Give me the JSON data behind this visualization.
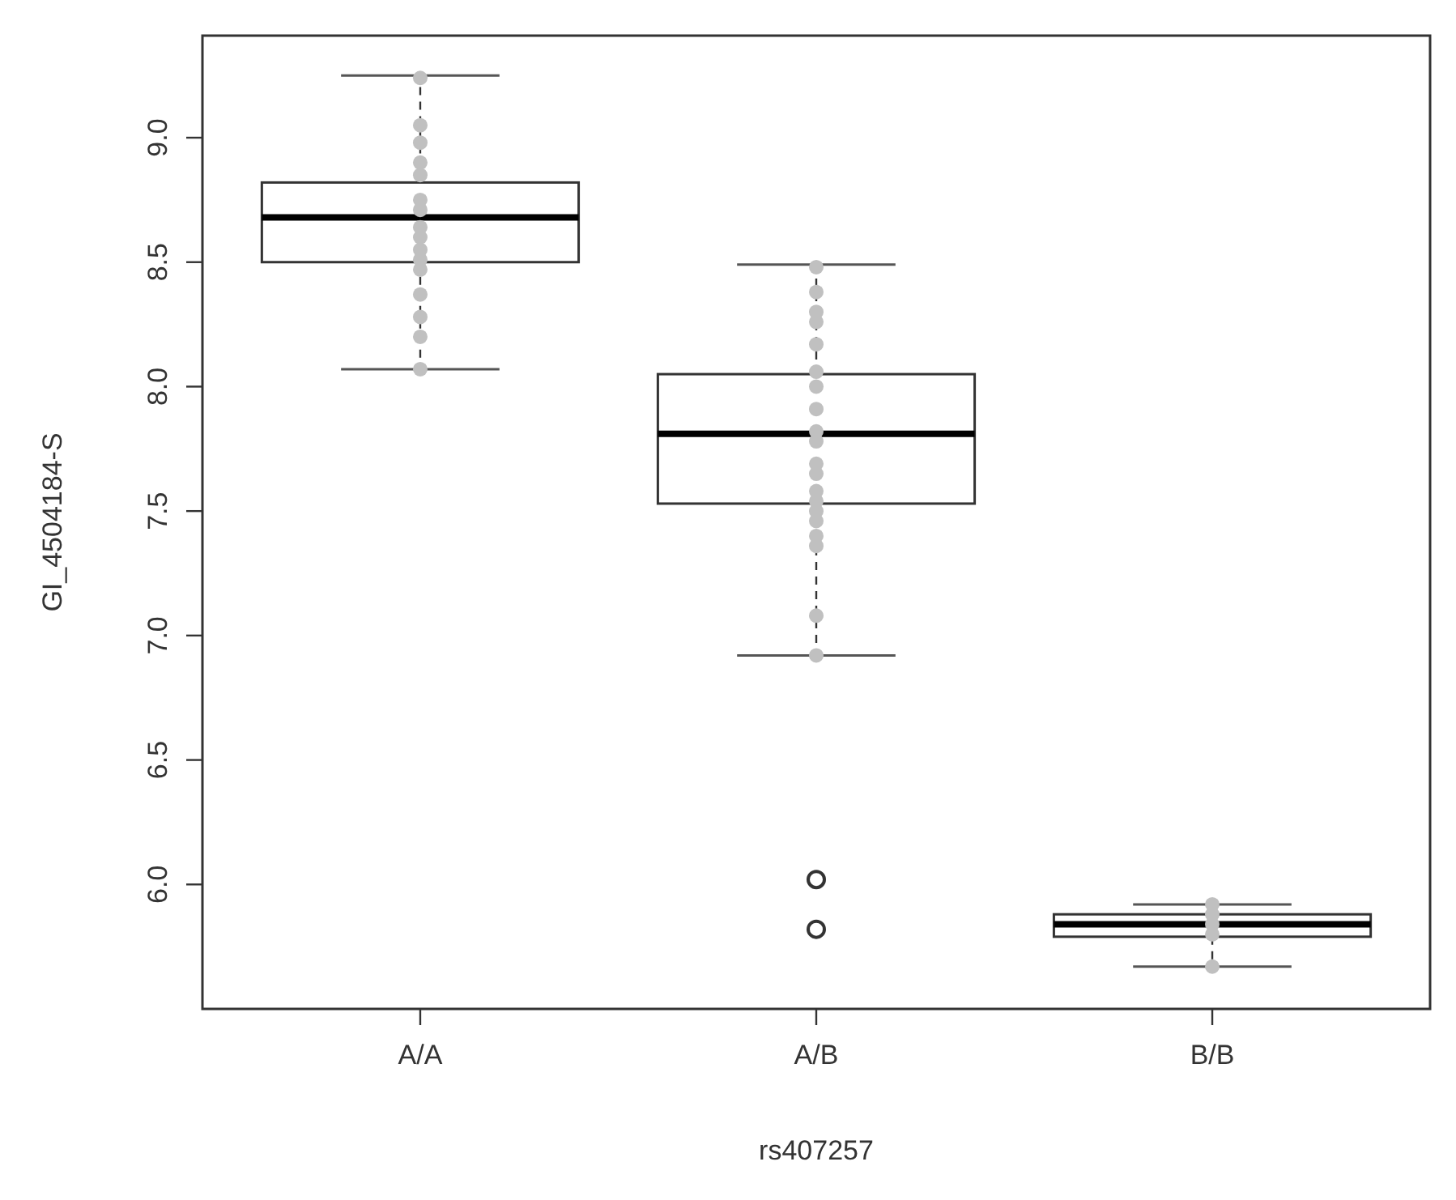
{
  "chart_data": {
    "type": "box",
    "xlabel": "rs407257",
    "ylabel": "GI_4504184-S",
    "categories": [
      "A/A",
      "A/B",
      "B/B"
    ],
    "ylim": [
      5.5,
      9.41
    ],
    "yticks": [
      {
        "value": 6,
        "label": "6.0"
      },
      {
        "value": 6.5,
        "label": "6.5"
      },
      {
        "value": 7,
        "label": "7.0"
      },
      {
        "value": 7.5,
        "label": "7.5"
      },
      {
        "value": 8,
        "label": "8.0"
      },
      {
        "value": 8.5,
        "label": "8.5"
      },
      {
        "value": 9,
        "label": "9.0"
      }
    ],
    "boxes": [
      {
        "low": 8.07,
        "q1": 8.5,
        "median": 8.68,
        "q3": 8.82,
        "high": 9.25
      },
      {
        "low": 6.92,
        "q1": 7.53,
        "median": 7.81,
        "q3": 8.05,
        "high": 8.49,
        "outliers": [
          6.02,
          5.82
        ]
      },
      {
        "low": 5.67,
        "q1": 5.79,
        "median": 5.84,
        "q3": 5.88,
        "high": 5.92
      }
    ],
    "series": [
      {
        "type": "scatter",
        "color": "#c0c0c0",
        "x": [
          "A/A",
          "A/A",
          "A/A",
          "A/A",
          "A/A",
          "A/A",
          "A/A",
          "A/A",
          "A/A",
          "A/A",
          "A/A",
          "A/A",
          "A/A",
          "A/A",
          "A/A",
          "A/A",
          "A/B",
          "A/B",
          "A/B",
          "A/B",
          "A/B",
          "A/B",
          "A/B",
          "A/B",
          "A/B",
          "A/B",
          "A/B",
          "A/B",
          "A/B",
          "A/B",
          "A/B",
          "A/B",
          "A/B",
          "A/B",
          "A/B",
          "A/B",
          "B/B",
          "B/B",
          "B/B",
          "B/B",
          "B/B"
        ],
        "values": [
          9.24,
          9.05,
          8.98,
          8.9,
          8.85,
          8.75,
          8.71,
          8.64,
          8.6,
          8.55,
          8.51,
          8.47,
          8.37,
          8.28,
          8.2,
          8.07,
          8.48,
          8.38,
          8.3,
          8.26,
          8.17,
          8.06,
          8,
          7.91,
          7.82,
          7.78,
          7.69,
          7.65,
          7.58,
          7.54,
          7.5,
          7.46,
          7.4,
          7.36,
          7.08,
          6.92,
          5.92,
          5.88,
          5.84,
          5.8,
          5.67
        ]
      }
    ],
    "grid": false,
    "marker": "circle"
  }
}
